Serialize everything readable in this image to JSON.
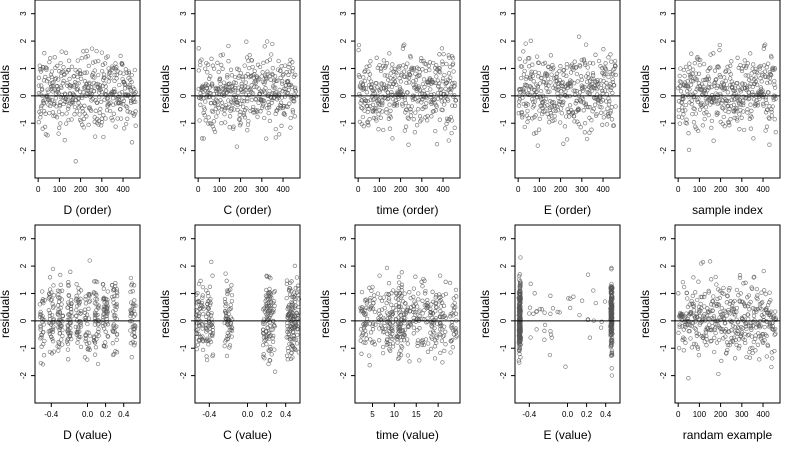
{
  "chart_data": [
    {
      "type": "scatter",
      "xlabel": "D (order)",
      "ylabel": "residuals",
      "xlim": [
        -15,
        480
      ],
      "ylim": [
        -3,
        3.5
      ],
      "xticks": [
        0,
        100,
        200,
        300,
        400
      ],
      "yticks": [
        -2,
        -1,
        0,
        1,
        2,
        3
      ],
      "yticklabels": [
        "-2",
        "-1",
        "0",
        "1",
        "2",
        "3"
      ],
      "hline": 0,
      "dist": "order",
      "seed": 11
    },
    {
      "type": "scatter",
      "xlabel": "C (order)",
      "ylabel": "residuals",
      "xlim": [
        -15,
        480
      ],
      "ylim": [
        -3,
        3.5
      ],
      "xticks": [
        0,
        100,
        200,
        300,
        400
      ],
      "yticks": [
        -2,
        -1,
        0,
        1,
        2,
        3
      ],
      "yticklabels": [
        "-2",
        "-1",
        "0",
        "1",
        "2",
        "3"
      ],
      "hline": 0,
      "dist": "order",
      "seed": 23
    },
    {
      "type": "scatter",
      "xlabel": "time (order)",
      "ylabel": "residuals",
      "xlim": [
        -15,
        480
      ],
      "ylim": [
        -3,
        3.5
      ],
      "xticks": [
        0,
        100,
        200,
        300,
        400
      ],
      "yticks": [
        -2,
        -1,
        0,
        1,
        2,
        3
      ],
      "yticklabels": [
        "-2",
        "-1",
        "0",
        "1",
        "2",
        "3"
      ],
      "hline": 0,
      "dist": "order",
      "seed": 37
    },
    {
      "type": "scatter",
      "xlabel": "E (order)",
      "ylabel": "residuals",
      "xlim": [
        -15,
        480
      ],
      "ylim": [
        -3,
        3.5
      ],
      "xticks": [
        0,
        100,
        200,
        300,
        400
      ],
      "yticks": [
        -2,
        -1,
        0,
        1,
        2,
        3
      ],
      "yticklabels": [
        "-2",
        "-1",
        "0",
        "1",
        "2",
        "3"
      ],
      "hline": 0,
      "dist": "order",
      "seed": 41
    },
    {
      "type": "scatter",
      "xlabel": "sample index",
      "ylabel": "residuals",
      "xlim": [
        -15,
        480
      ],
      "ylim": [
        -3,
        3.5
      ],
      "xticks": [
        0,
        100,
        200,
        300,
        400
      ],
      "yticks": [
        -2,
        -1,
        0,
        1,
        2,
        3
      ],
      "yticklabels": [
        "-2",
        "-1",
        "0",
        "1",
        "2",
        "3"
      ],
      "hline": 0,
      "dist": "order",
      "seed": 53
    },
    {
      "type": "scatter",
      "xlabel": "D (value)",
      "ylabel": "residuals",
      "xlim": [
        -0.58,
        0.58
      ],
      "ylim": [
        -3,
        3.5
      ],
      "xticks": [
        -0.4,
        0,
        0.2,
        0.4
      ],
      "xticklabels": [
        "-0.4",
        "0.0",
        "0.2",
        "0.4"
      ],
      "yticks": [
        -2,
        -1,
        0,
        1,
        2,
        3
      ],
      "yticklabels": [
        "-2",
        "-1",
        "0",
        "1",
        "2",
        "3"
      ],
      "hline": 0,
      "dist": "D",
      "seed": 61
    },
    {
      "type": "scatter",
      "xlabel": "C (value)",
      "ylabel": "residuals",
      "xlim": [
        -0.55,
        0.55
      ],
      "ylim": [
        -3,
        3.5
      ],
      "xticks": [
        -0.4,
        0,
        0.2,
        0.4
      ],
      "xticklabels": [
        "-0.4",
        "0.0",
        "0.2",
        "0.4"
      ],
      "yticks": [
        -2,
        -1,
        0,
        1,
        2,
        3
      ],
      "yticklabels": [
        "-2",
        "-1",
        "0",
        "1",
        "2",
        "3"
      ],
      "hline": 0,
      "dist": "C",
      "seed": 71
    },
    {
      "type": "scatter",
      "xlabel": "time (value)",
      "ylabel": "residuals",
      "xlim": [
        1,
        25
      ],
      "ylim": [
        -3,
        3.5
      ],
      "xticks": [
        5,
        10,
        15,
        20
      ],
      "yticks": [
        -2,
        -1,
        0,
        1,
        2,
        3
      ],
      "yticklabels": [
        "-2",
        "-1",
        "0",
        "1",
        "2",
        "3"
      ],
      "hline": 0,
      "dist": "time",
      "seed": 83
    },
    {
      "type": "scatter",
      "xlabel": "E (value)",
      "ylabel": "residuals",
      "xlim": [
        -0.55,
        0.55
      ],
      "ylim": [
        -3,
        3.5
      ],
      "xticks": [
        -0.4,
        0,
        0.2,
        0.4
      ],
      "xticklabels": [
        "-0.4",
        "0.0",
        "0.2",
        "0.4"
      ],
      "yticks": [
        -2,
        -1,
        0,
        1,
        2,
        3
      ],
      "yticklabels": [
        "-2",
        "-1",
        "0",
        "1",
        "2",
        "3"
      ],
      "hline": 0,
      "dist": "E",
      "seed": 97
    },
    {
      "type": "scatter",
      "xlabel": "randam example",
      "ylabel": "residuals",
      "xlim": [
        -15,
        480
      ],
      "ylim": [
        -3,
        3.5
      ],
      "xticks": [
        0,
        100,
        200,
        300,
        400
      ],
      "yticks": [
        -2,
        -1,
        0,
        1,
        2,
        3
      ],
      "yticklabels": [
        "-2",
        "-1",
        "0",
        "1",
        "2",
        "3"
      ],
      "hline": 0,
      "dist": "order",
      "seed": 101
    }
  ],
  "style": {
    "point_color": "#555555",
    "axis_color": "#000000",
    "background": "#ffffff"
  }
}
